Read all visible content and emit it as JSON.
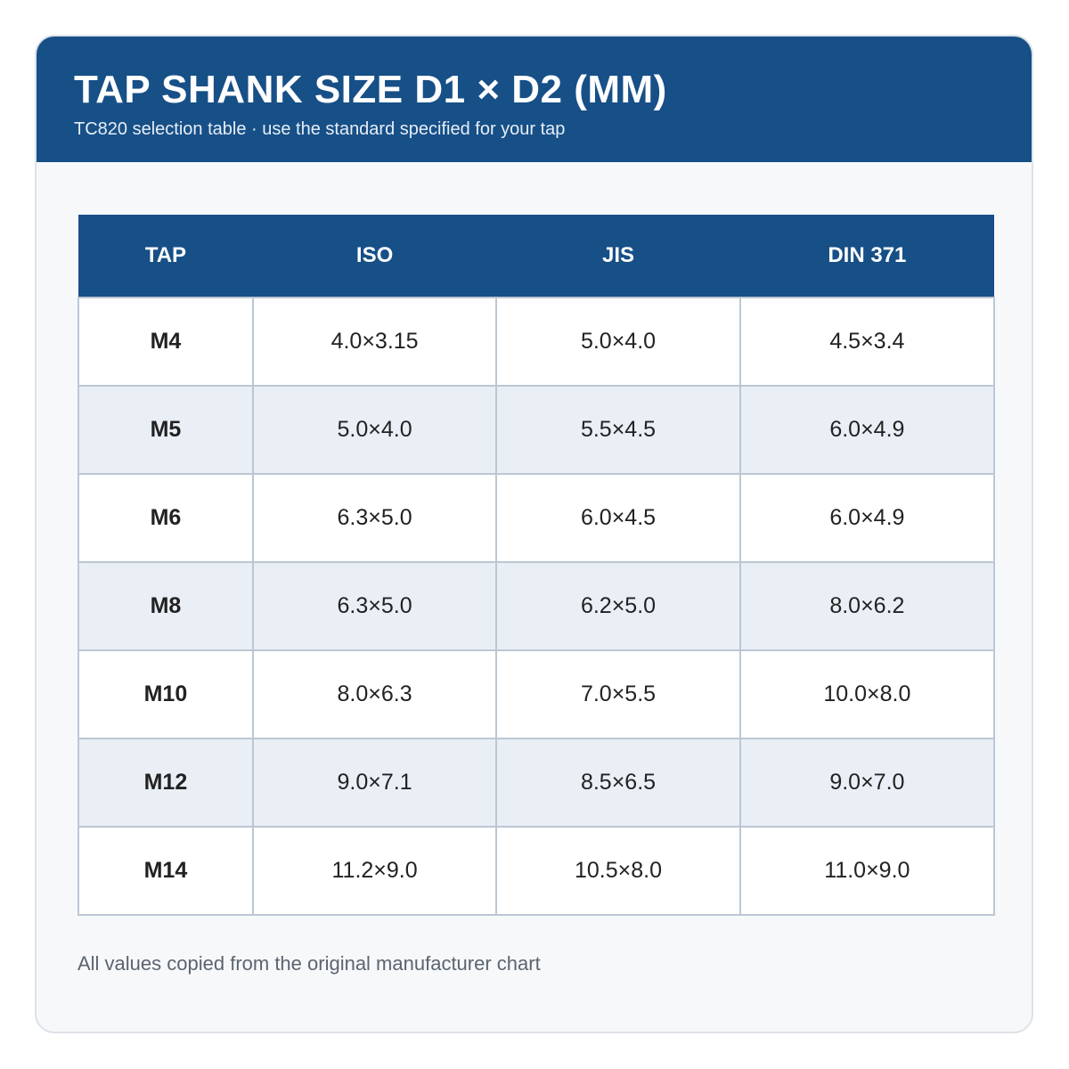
{
  "header": {
    "title": "TAP SHANK SIZE D1 × D2 (MM)",
    "subtitle": "TC820 selection table · use the standard specified for your tap"
  },
  "table": {
    "columns": [
      "TAP",
      "ISO",
      "JIS",
      "DIN 371"
    ],
    "rows": [
      [
        "M4",
        "4.0×3.15",
        "5.0×4.0",
        "4.5×3.4"
      ],
      [
        "M5",
        "5.0×4.0",
        "5.5×4.5",
        "6.0×4.9"
      ],
      [
        "M6",
        "6.3×5.0",
        "6.0×4.5",
        "6.0×4.9"
      ],
      [
        "M8",
        "6.3×5.0",
        "6.2×5.0",
        "8.0×6.2"
      ],
      [
        "M10",
        "8.0×6.3",
        "7.0×5.5",
        "10.0×8.0"
      ],
      [
        "M12",
        "9.0×7.1",
        "8.5×6.5",
        "9.0×7.0"
      ],
      [
        "M14",
        "11.2×9.0",
        "10.5×8.0",
        "11.0×9.0"
      ]
    ]
  },
  "footer": {
    "note": "All values copied from the original manufacturer chart"
  }
}
